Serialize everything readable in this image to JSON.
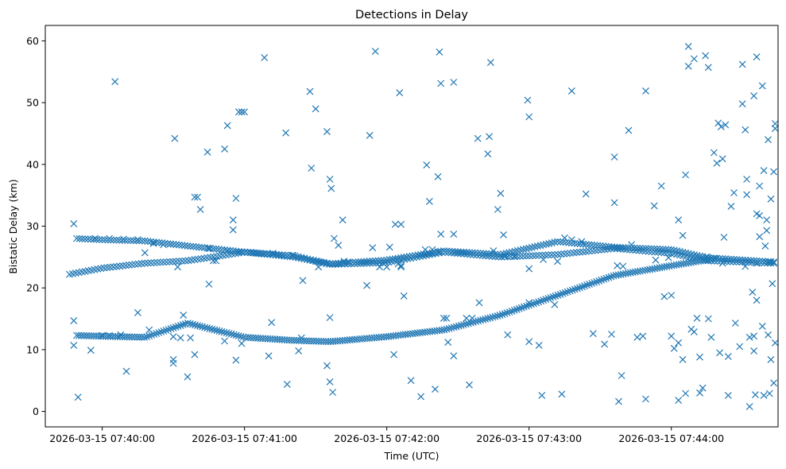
{
  "chart_data": {
    "type": "scatter",
    "title": "Detections in Delay",
    "xlabel": "Time (UTC)",
    "ylabel": "Bistatic Delay (km)",
    "marker": "x",
    "color": "#1f77b4",
    "x_unit": "minutes after 2026-03-15 07:39:00",
    "xlim": [
      0.6,
      5.75
    ],
    "ylim": [
      -2.5,
      62.5
    ],
    "xticks": [
      1,
      2,
      3,
      4,
      5
    ],
    "xtick_labels": [
      "2026-03-15 07:40:00",
      "2026-03-15 07:41:00",
      "2026-03-15 07:42:00",
      "2026-03-15 07:43:00",
      "2026-03-15 07:44:00"
    ],
    "yticks": [
      0,
      10,
      20,
      30,
      40,
      50,
      60
    ],
    "ytick_labels": [
      "0",
      "10",
      "20",
      "30",
      "40",
      "50",
      "60"
    ],
    "tracks": [
      {
        "name": "rising-track",
        "x_start": 0.77,
        "x_end": 5.72,
        "step": 0.022,
        "knots_x": [
          0.77,
          1.0,
          1.3,
          1.6,
          2.0,
          2.35,
          2.6,
          3.0,
          3.4,
          3.8,
          4.2,
          4.6,
          5.0,
          5.25,
          5.72
        ],
        "knots_y": [
          22.2,
          23.2,
          24.0,
          24.4,
          25.8,
          25.2,
          23.8,
          24.1,
          25.8,
          25.0,
          25.4,
          26.4,
          25.6,
          24.4,
          24.0
        ]
      },
      {
        "name": "upper-track",
        "x_start": 0.82,
        "x_end": 5.72,
        "step": 0.02,
        "knots_x": [
          0.82,
          1.0,
          1.3,
          1.6,
          2.0,
          2.35,
          2.6,
          3.0,
          3.4,
          3.8,
          4.2,
          4.6,
          5.0,
          5.25,
          5.72
        ],
        "knots_y": [
          28.0,
          27.8,
          27.6,
          26.8,
          25.8,
          25.0,
          23.9,
          24.5,
          26.0,
          25.4,
          27.5,
          26.6,
          26.2,
          24.9,
          24.2
        ]
      },
      {
        "name": "curved-track",
        "x_start": 0.82,
        "x_end": 5.32,
        "step": 0.017,
        "knots_x": [
          0.82,
          1.3,
          1.6,
          2.0,
          2.35,
          2.6,
          3.0,
          3.4,
          3.8,
          4.2,
          4.6,
          5.0,
          5.32
        ],
        "knots_y": [
          12.3,
          12.0,
          14.3,
          12.0,
          11.5,
          11.3,
          12.1,
          13.2,
          15.6,
          18.8,
          22.0,
          23.6,
          24.8
        ]
      }
    ],
    "scattered_points": [
      [
        0.8,
        30.4
      ],
      [
        0.8,
        14.7
      ],
      [
        0.8,
        10.7
      ],
      [
        0.83,
        2.3
      ],
      [
        0.92,
        9.9
      ],
      [
        1.09,
        53.4
      ],
      [
        1.17,
        6.5
      ],
      [
        1.25,
        16.0
      ],
      [
        1.3,
        25.7
      ],
      [
        1.33,
        13.2
      ],
      [
        1.48,
        27.1
      ],
      [
        1.5,
        7.8
      ],
      [
        1.5,
        8.4
      ],
      [
        1.51,
        44.2
      ],
      [
        1.53,
        23.4
      ],
      [
        1.57,
        15.6
      ],
      [
        1.6,
        5.6
      ],
      [
        1.65,
        9.2
      ],
      [
        1.65,
        34.7
      ],
      [
        1.67,
        34.7
      ],
      [
        1.69,
        32.7
      ],
      [
        1.74,
        42.0
      ],
      [
        1.75,
        20.6
      ],
      [
        1.78,
        24.4
      ],
      [
        1.8,
        24.4
      ],
      [
        1.86,
        42.5
      ],
      [
        1.86,
        11.4
      ],
      [
        1.88,
        46.3
      ],
      [
        1.92,
        31.0
      ],
      [
        1.92,
        29.4
      ],
      [
        1.94,
        34.5
      ],
      [
        1.94,
        8.3
      ],
      [
        1.96,
        48.5
      ],
      [
        1.98,
        48.5
      ],
      [
        1.98,
        11.0
      ],
      [
        2.0,
        48.5
      ],
      [
        2.14,
        57.3
      ],
      [
        2.17,
        9.0
      ],
      [
        2.19,
        14.4
      ],
      [
        2.29,
        45.1
      ],
      [
        2.3,
        4.4
      ],
      [
        2.38,
        9.8
      ],
      [
        2.41,
        21.2
      ],
      [
        2.46,
        51.8
      ],
      [
        2.47,
        39.4
      ],
      [
        2.5,
        49.0
      ],
      [
        2.58,
        45.3
      ],
      [
        2.58,
        7.4
      ],
      [
        2.6,
        37.6
      ],
      [
        2.61,
        36.1
      ],
      [
        2.6,
        15.2
      ],
      [
        2.6,
        4.8
      ],
      [
        2.62,
        3.1
      ],
      [
        2.63,
        28.0
      ],
      [
        2.66,
        26.9
      ],
      [
        2.69,
        31.0
      ],
      [
        2.86,
        20.4
      ],
      [
        2.88,
        44.7
      ],
      [
        2.92,
        58.3
      ],
      [
        2.95,
        23.4
      ],
      [
        3.0,
        23.4
      ],
      [
        3.05,
        9.2
      ],
      [
        3.09,
        51.6
      ],
      [
        3.1,
        30.3
      ],
      [
        3.12,
        18.7
      ],
      [
        3.17,
        5.0
      ],
      [
        3.24,
        2.4
      ],
      [
        3.28,
        39.9
      ],
      [
        3.3,
        34.0
      ],
      [
        3.34,
        3.6
      ],
      [
        3.36,
        38.0
      ],
      [
        3.37,
        58.2
      ],
      [
        3.38,
        53.1
      ],
      [
        3.38,
        28.7
      ],
      [
        3.37,
        25.8
      ],
      [
        3.43,
        11.2
      ],
      [
        3.47,
        53.3
      ],
      [
        3.47,
        28.7
      ],
      [
        3.47,
        9.0
      ],
      [
        3.58,
        4.3
      ],
      [
        3.64,
        44.2
      ],
      [
        3.65,
        17.6
      ],
      [
        3.71,
        41.7
      ],
      [
        3.72,
        44.5
      ],
      [
        3.73,
        56.5
      ],
      [
        3.78,
        32.7
      ],
      [
        3.8,
        35.3
      ],
      [
        3.82,
        28.6
      ],
      [
        3.85,
        12.4
      ],
      [
        3.99,
        50.4
      ],
      [
        4.0,
        47.7
      ],
      [
        4.0,
        17.6
      ],
      [
        4.0,
        11.3
      ],
      [
        4.07,
        10.7
      ],
      [
        4.09,
        2.6
      ],
      [
        4.18,
        17.3
      ],
      [
        4.23,
        2.8
      ],
      [
        4.3,
        51.9
      ],
      [
        4.4,
        35.2
      ],
      [
        4.6,
        41.2
      ],
      [
        4.6,
        33.8
      ],
      [
        4.63,
        1.6
      ],
      [
        4.65,
        5.8
      ],
      [
        4.7,
        45.5
      ],
      [
        4.82,
        51.9
      ],
      [
        4.82,
        2.0
      ],
      [
        4.88,
        33.3
      ],
      [
        4.93,
        36.5
      ],
      [
        4.95,
        18.6
      ],
      [
        5.0,
        18.8
      ],
      [
        5.02,
        10.2
      ],
      [
        5.05,
        1.8
      ],
      [
        5.05,
        31.0
      ],
      [
        5.08,
        28.5
      ],
      [
        5.08,
        8.4
      ],
      [
        5.1,
        2.9
      ],
      [
        5.1,
        38.3
      ],
      [
        5.12,
        59.1
      ],
      [
        5.12,
        55.9
      ],
      [
        5.16,
        57.1
      ],
      [
        5.2,
        8.8
      ],
      [
        5.24,
        57.6
      ],
      [
        5.26,
        55.7
      ],
      [
        5.2,
        3.0
      ],
      [
        5.22,
        3.8
      ],
      [
        5.25,
        25.0
      ],
      [
        5.3,
        41.9
      ],
      [
        5.32,
        40.2
      ],
      [
        5.33,
        46.7
      ],
      [
        5.35,
        46.1
      ],
      [
        5.36,
        40.9
      ],
      [
        5.37,
        28.2
      ],
      [
        5.38,
        46.4
      ],
      [
        5.4,
        2.6
      ],
      [
        5.4,
        8.9
      ],
      [
        5.42,
        33.2
      ],
      [
        5.44,
        35.4
      ],
      [
        5.45,
        14.3
      ],
      [
        5.5,
        49.8
      ],
      [
        5.5,
        56.2
      ],
      [
        5.52,
        45.6
      ],
      [
        5.53,
        37.6
      ],
      [
        5.53,
        35.1
      ],
      [
        5.55,
        12.0
      ],
      [
        5.55,
        0.8
      ],
      [
        5.58,
        51.1
      ],
      [
        5.6,
        57.4
      ],
      [
        5.6,
        32.0
      ],
      [
        5.6,
        18.0
      ],
      [
        5.62,
        36.5
      ],
      [
        5.62,
        28.3
      ],
      [
        5.62,
        31.7
      ],
      [
        5.64,
        52.7
      ],
      [
        5.65,
        39.0
      ],
      [
        5.67,
        31.0
      ],
      [
        5.68,
        44.0
      ],
      [
        5.69,
        2.9
      ],
      [
        5.7,
        34.4
      ],
      [
        5.7,
        8.4
      ],
      [
        5.71,
        20.7
      ],
      [
        5.72,
        38.8
      ],
      [
        5.72,
        4.6
      ],
      [
        5.73,
        46.6
      ],
      [
        5.73,
        45.8
      ],
      [
        5.73,
        11.1
      ],
      [
        5.65,
        2.6
      ],
      [
        5.58,
        9.8
      ],
      [
        5.59,
        2.7
      ],
      [
        5.57,
        19.3
      ],
      [
        5.58,
        12.2
      ],
      [
        5.64,
        13.8
      ],
      [
        5.66,
        26.8
      ],
      [
        5.67,
        29.3
      ],
      [
        5.68,
        12.4
      ],
      [
        5.69,
        24.2
      ],
      [
        1.0,
        12.3
      ],
      [
        1.05,
        12.3
      ],
      [
        1.13,
        12.4
      ],
      [
        0.95,
        28.0
      ],
      [
        1.05,
        28.0
      ],
      [
        1.15,
        27.9
      ],
      [
        1.25,
        27.8
      ],
      [
        1.36,
        27.2
      ],
      [
        1.43,
        27.0
      ],
      [
        1.5,
        12.1
      ],
      [
        1.55,
        11.9
      ],
      [
        1.62,
        11.9
      ],
      [
        1.75,
        26.4
      ],
      [
        1.88,
        26.0
      ],
      [
        2.2,
        25.6
      ],
      [
        2.34,
        25.3
      ],
      [
        2.4,
        11.9
      ],
      [
        2.52,
        23.4
      ],
      [
        2.7,
        24.3
      ],
      [
        2.73,
        24.2
      ],
      [
        2.9,
        26.5
      ],
      [
        3.02,
        26.6
      ],
      [
        3.06,
        30.3
      ],
      [
        3.08,
        23.9
      ],
      [
        3.1,
        23.6
      ],
      [
        3.1,
        23.4
      ],
      [
        3.27,
        26.2
      ],
      [
        3.32,
        26.2
      ],
      [
        3.4,
        15.1
      ],
      [
        3.42,
        15.1
      ],
      [
        3.56,
        15.1
      ],
      [
        3.6,
        15.1
      ],
      [
        3.75,
        26.0
      ],
      [
        3.83,
        25.2
      ],
      [
        3.9,
        25.1
      ],
      [
        4.0,
        23.1
      ],
      [
        4.1,
        24.6
      ],
      [
        4.2,
        24.3
      ],
      [
        4.25,
        28.1
      ],
      [
        4.3,
        27.8
      ],
      [
        4.37,
        27.5
      ],
      [
        4.45,
        12.6
      ],
      [
        4.53,
        10.9
      ],
      [
        4.58,
        12.5
      ],
      [
        4.62,
        23.6
      ],
      [
        4.66,
        23.5
      ],
      [
        4.72,
        27.0
      ],
      [
        4.76,
        12.0
      ],
      [
        4.8,
        12.2
      ],
      [
        4.89,
        24.5
      ],
      [
        4.98,
        24.9
      ],
      [
        5.0,
        12.2
      ],
      [
        5.05,
        11.1
      ],
      [
        5.14,
        13.3
      ],
      [
        5.16,
        12.9
      ],
      [
        5.18,
        15.1
      ],
      [
        5.26,
        15.0
      ],
      [
        5.28,
        12.0
      ],
      [
        5.34,
        9.5
      ],
      [
        5.36,
        24.0
      ],
      [
        5.48,
        10.5
      ],
      [
        5.52,
        23.5
      ],
      [
        5.6,
        24.0
      ]
    ]
  }
}
